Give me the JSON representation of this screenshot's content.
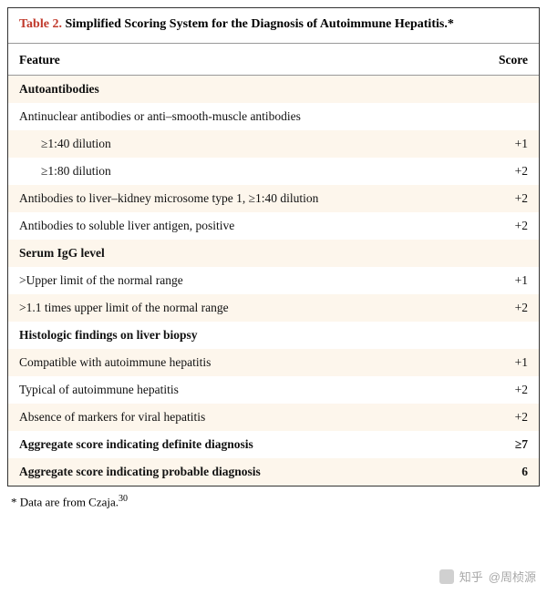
{
  "colors": {
    "title_accent": "#c0392b",
    "border": "#333333",
    "inner_border": "#999999",
    "stripe_odd": "#fdf6ec",
    "stripe_even": "#ffffff",
    "text": "#111111"
  },
  "typography": {
    "family": "Georgia serif",
    "base_size_pt": 13.5,
    "title_size_pt": 14,
    "footnote_size_pt": 13
  },
  "table": {
    "label": "Table 2.",
    "caption": "Simplified Scoring System for the Diagnosis of Autoimmune Hepatitis.*",
    "columns": [
      "Feature",
      "Score"
    ],
    "rows": [
      {
        "feature": "Autoantibodies",
        "score": "",
        "section": true,
        "indent": 0,
        "bold": true,
        "stripe": "odd"
      },
      {
        "feature": "Antinuclear antibodies or anti–smooth-muscle antibodies",
        "score": "",
        "section": false,
        "indent": 0,
        "bold": false,
        "stripe": "even"
      },
      {
        "feature": "≥1:40 dilution",
        "score": "+1",
        "section": false,
        "indent": 1,
        "bold": false,
        "stripe": "odd"
      },
      {
        "feature": "≥1:80 dilution",
        "score": "+2",
        "section": false,
        "indent": 1,
        "bold": false,
        "stripe": "even"
      },
      {
        "feature": "Antibodies to liver–kidney microsome type 1, ≥1:40 dilution",
        "score": "+2",
        "section": false,
        "indent": 0,
        "bold": false,
        "stripe": "odd"
      },
      {
        "feature": "Antibodies to soluble liver antigen, positive",
        "score": "+2",
        "section": false,
        "indent": 0,
        "bold": false,
        "stripe": "even"
      },
      {
        "feature": "Serum IgG level",
        "score": "",
        "section": true,
        "indent": 0,
        "bold": true,
        "stripe": "odd"
      },
      {
        "feature": ">Upper limit of the normal range",
        "score": "+1",
        "section": false,
        "indent": 0,
        "bold": false,
        "stripe": "even"
      },
      {
        "feature": ">1.1 times upper limit of the normal range",
        "score": "+2",
        "section": false,
        "indent": 0,
        "bold": false,
        "stripe": "odd"
      },
      {
        "feature": "Histologic findings on liver biopsy",
        "score": "",
        "section": true,
        "indent": 0,
        "bold": true,
        "stripe": "even"
      },
      {
        "feature": "Compatible with autoimmune hepatitis",
        "score": "+1",
        "section": false,
        "indent": 0,
        "bold": false,
        "stripe": "odd"
      },
      {
        "feature": "Typical of autoimmune hepatitis",
        "score": "+2",
        "section": false,
        "indent": 0,
        "bold": false,
        "stripe": "even"
      },
      {
        "feature": "Absence of markers for viral hepatitis",
        "score": "+2",
        "section": false,
        "indent": 0,
        "bold": false,
        "stripe": "odd"
      },
      {
        "feature": "Aggregate score indicating definite diagnosis",
        "score": "≥7",
        "section": false,
        "indent": 0,
        "bold": true,
        "stripe": "even"
      },
      {
        "feature": "Aggregate score indicating probable diagnosis",
        "score": "6",
        "section": false,
        "indent": 0,
        "bold": true,
        "stripe": "odd"
      }
    ]
  },
  "footnote": {
    "marker": "*",
    "text": "Data are from Czaja.",
    "ref": "30"
  },
  "watermark": {
    "site": "知乎",
    "author": "@周桢源"
  }
}
